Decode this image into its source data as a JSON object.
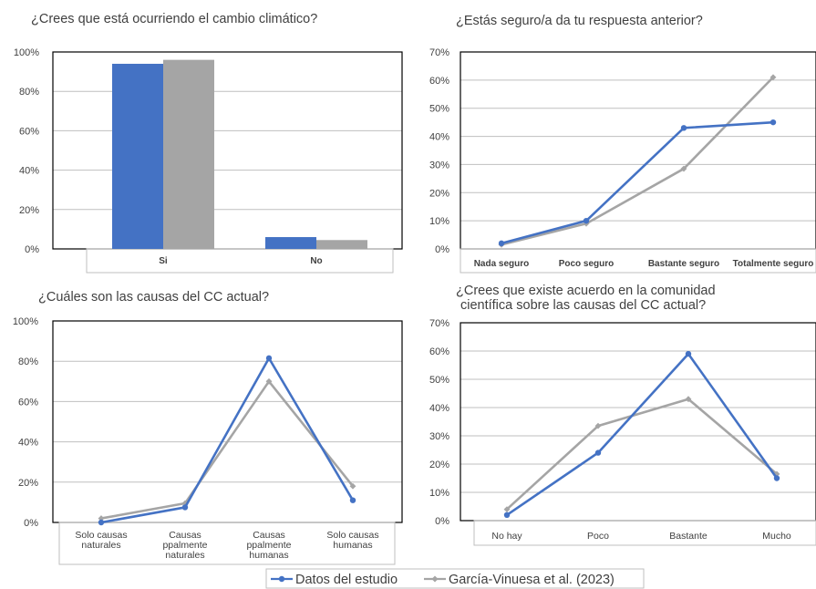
{
  "colors": {
    "study": "#4472C4",
    "ref": "#A5A5A5",
    "grid": "#BFBFBF",
    "axis": "#000000"
  },
  "legend": {
    "study": "Datos del estudio",
    "ref": "García-Vinuesa et al. (2023)"
  },
  "chart_data": [
    {
      "id": "c1",
      "type": "bar",
      "title": [
        "¿Crees que está ocurriendo el cambio climático?"
      ],
      "categories": [
        [
          "Si"
        ],
        [
          "No"
        ]
      ],
      "ylim": [
        0,
        1
      ],
      "yticks": [
        0,
        0.2,
        0.4,
        0.6,
        0.8,
        1
      ],
      "ytick_labels": [
        "0%",
        "20%",
        "40%",
        "60%",
        "80%",
        "100%"
      ],
      "series": [
        {
          "key": "study",
          "values": [
            0.94,
            0.06
          ]
        },
        {
          "key": "ref",
          "values": [
            0.96,
            0.045
          ]
        }
      ]
    },
    {
      "id": "c2",
      "type": "line",
      "title": [
        "¿Estás seguro/a da tu respuesta anterior?"
      ],
      "categories": [
        [
          "Nada seguro"
        ],
        [
          "Poco seguro"
        ],
        [
          "Bastante seguro"
        ],
        [
          "Totalmente seguro"
        ]
      ],
      "ylim": [
        0,
        0.7
      ],
      "yticks": [
        0,
        0.1,
        0.2,
        0.3,
        0.4,
        0.5,
        0.6,
        0.7
      ],
      "ytick_labels": [
        "0%",
        "10%",
        "20%",
        "30%",
        "40%",
        "50%",
        "60%",
        "70%"
      ],
      "series": [
        {
          "key": "study",
          "values": [
            0.02,
            0.1,
            0.43,
            0.45
          ]
        },
        {
          "key": "ref",
          "values": [
            0.015,
            0.09,
            0.285,
            0.61
          ]
        }
      ]
    },
    {
      "id": "c3",
      "type": "line",
      "title": [
        "¿Cuáles son las causas del CC actual?"
      ],
      "categories": [
        [
          "Solo causas",
          "naturales"
        ],
        [
          "Causas",
          "ppalmente",
          "naturales"
        ],
        [
          "Causas",
          "ppalmente",
          "humanas"
        ],
        [
          "Solo causas",
          "humanas"
        ]
      ],
      "ylim": [
        0,
        1
      ],
      "yticks": [
        0,
        0.2,
        0.4,
        0.6,
        0.8,
        1
      ],
      "ytick_labels": [
        "0%",
        "20%",
        "40%",
        "60%",
        "80%",
        "100%"
      ],
      "series": [
        {
          "key": "study",
          "values": [
            0.0,
            0.075,
            0.815,
            0.11
          ]
        },
        {
          "key": "ref",
          "values": [
            0.02,
            0.095,
            0.7,
            0.18
          ]
        }
      ]
    },
    {
      "id": "c4",
      "type": "line",
      "title": [
        "¿Crees que existe acuerdo en la comunidad",
        "científica sobre las causas del CC actual?"
      ],
      "categories": [
        [
          "No hay"
        ],
        [
          "Poco"
        ],
        [
          "Bastante"
        ],
        [
          "Mucho"
        ]
      ],
      "ylim": [
        0,
        0.7
      ],
      "yticks": [
        0,
        0.1,
        0.2,
        0.3,
        0.4,
        0.5,
        0.6,
        0.7
      ],
      "ytick_labels": [
        "0%",
        "10%",
        "20%",
        "30%",
        "40%",
        "50%",
        "60%",
        "70%"
      ],
      "series": [
        {
          "key": "study",
          "values": [
            0.02,
            0.24,
            0.59,
            0.15
          ]
        },
        {
          "key": "ref",
          "values": [
            0.04,
            0.335,
            0.43,
            0.165
          ]
        }
      ]
    }
  ]
}
